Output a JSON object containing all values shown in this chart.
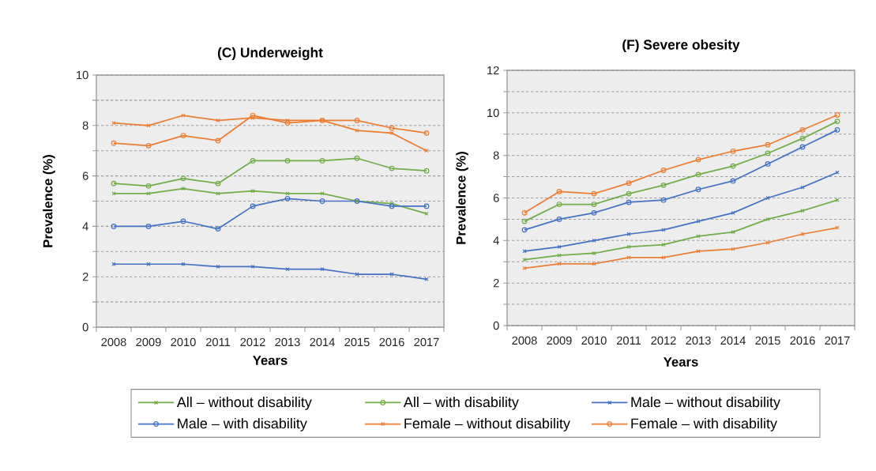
{
  "chart_data": [
    {
      "type": "line",
      "title": "(C) Underweight",
      "xlabel": "Years",
      "ylabel": "Prevalence (%)",
      "categories": [
        "2008",
        "2009",
        "2010",
        "2011",
        "2012",
        "2013",
        "2014",
        "2015",
        "2016",
        "2017"
      ],
      "ylim": [
        0,
        10
      ],
      "yticks": [
        0,
        {
          "value": 1,
          "label": null
        },
        2,
        {
          "value": 3,
          "label": null
        },
        4,
        {
          "value": 5,
          "label": null
        },
        6,
        {
          "value": 7,
          "label": null
        },
        8,
        {
          "value": 9,
          "label": null
        },
        10
      ],
      "grid": "y",
      "legend": "bottom",
      "series": [
        {
          "name": "All – without disability",
          "color": "#70ad47",
          "marker": "cross",
          "values": [
            5.3,
            5.3,
            5.5,
            5.3,
            5.4,
            5.3,
            5.3,
            5.0,
            4.9,
            4.5
          ]
        },
        {
          "name": "All – with disability",
          "color": "#70ad47",
          "marker": "circle",
          "values": [
            5.7,
            5.6,
            5.9,
            5.7,
            6.6,
            6.6,
            6.6,
            6.7,
            6.3,
            6.2
          ]
        },
        {
          "name": "Male – without disability",
          "color": "#4472c4",
          "marker": "cross",
          "values": [
            2.5,
            2.5,
            2.5,
            2.4,
            2.4,
            2.3,
            2.3,
            2.1,
            2.1,
            1.9
          ]
        },
        {
          "name": "Male – with disability",
          "color": "#4472c4",
          "marker": "circle",
          "values": [
            4.0,
            4.0,
            4.2,
            3.9,
            4.8,
            5.1,
            5.0,
            5.0,
            4.8,
            4.8
          ]
        },
        {
          "name": "Female – without disability",
          "color": "#ed7d31",
          "marker": "cross",
          "values": [
            8.1,
            8.0,
            8.4,
            8.2,
            8.3,
            8.2,
            8.2,
            7.8,
            7.7,
            7.0
          ]
        },
        {
          "name": "Female – with disability",
          "color": "#ed7d31",
          "marker": "circle",
          "values": [
            7.3,
            7.2,
            7.6,
            7.4,
            8.4,
            8.1,
            8.2,
            8.2,
            7.9,
            7.7
          ]
        }
      ]
    },
    {
      "type": "line",
      "title": "(F) Severe obesity",
      "xlabel": "Years",
      "ylabel": "Prevalence (%)",
      "categories": [
        "2008",
        "2009",
        "2010",
        "2011",
        "2012",
        "2013",
        "2014",
        "2015",
        "2016",
        "2017"
      ],
      "ylim": [
        0,
        12
      ],
      "yticks": [
        0,
        {
          "value": 1,
          "label": null
        },
        2,
        {
          "value": 3,
          "label": null
        },
        4,
        {
          "value": 5,
          "label": null
        },
        6,
        {
          "value": 7,
          "label": null
        },
        8,
        {
          "value": 9,
          "label": null
        },
        10,
        {
          "value": 11,
          "label": null
        },
        12
      ],
      "grid": "y",
      "series": [
        {
          "color": "#70ad47",
          "marker": "cross",
          "values": [
            3.1,
            3.3,
            3.4,
            3.7,
            3.8,
            4.2,
            4.4,
            5.0,
            5.4,
            5.9
          ]
        },
        {
          "color": "#70ad47",
          "marker": "circle",
          "values": [
            4.9,
            5.7,
            5.7,
            6.2,
            6.6,
            7.1,
            7.5,
            8.1,
            8.8,
            9.6
          ]
        },
        {
          "color": "#4472c4",
          "marker": "cross",
          "values": [
            3.5,
            3.7,
            4.0,
            4.3,
            4.5,
            4.9,
            5.3,
            6.0,
            6.5,
            7.2
          ]
        },
        {
          "color": "#4472c4",
          "marker": "circle",
          "values": [
            4.5,
            5.0,
            5.3,
            5.8,
            5.9,
            6.4,
            6.8,
            7.6,
            8.4,
            9.2
          ]
        },
        {
          "color": "#ed7d31",
          "marker": "cross",
          "values": [
            2.7,
            2.9,
            2.9,
            3.2,
            3.2,
            3.5,
            3.6,
            3.9,
            4.3,
            4.6
          ]
        },
        {
          "color": "#ed7d31",
          "marker": "circle",
          "values": [
            5.3,
            6.3,
            6.2,
            6.7,
            7.3,
            7.8,
            8.2,
            8.5,
            9.2,
            9.9
          ]
        }
      ]
    }
  ]
}
